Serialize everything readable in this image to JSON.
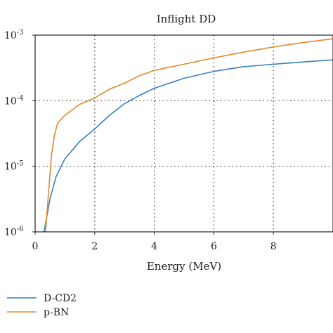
{
  "chart_data": {
    "type": "line",
    "title": "Inflight DD",
    "xlabel": "Energy (MeV)",
    "ylabel": "",
    "xlim": [
      0,
      10
    ],
    "ylim": [
      1e-06,
      0.001
    ],
    "yscale": "log",
    "grid": "dotted",
    "legend_position": "bottom-left",
    "x_ticks": [
      {
        "value": 0,
        "label": "0"
      },
      {
        "value": 2,
        "label": "2"
      },
      {
        "value": 4,
        "label": "4"
      },
      {
        "value": 6,
        "label": "6"
      },
      {
        "value": 8,
        "label": "8"
      }
    ],
    "y_ticks": [
      {
        "value": 1e-06,
        "base": "10",
        "exp": "-6"
      },
      {
        "value": 1e-05,
        "base": "10",
        "exp": "-5"
      },
      {
        "value": 0.0001,
        "base": "10",
        "exp": "-4"
      },
      {
        "value": 0.001,
        "base": "10",
        "exp": "-3"
      }
    ],
    "series": [
      {
        "name": "D-CD2",
        "color": "#3a7fc1",
        "x": [
          0.3,
          0.5,
          0.7,
          1.0,
          1.5,
          2.0,
          2.5,
          3.0,
          3.5,
          4.0,
          5.0,
          6.0,
          7.0,
          8.0,
          9.0,
          10.0
        ],
        "y": [
          1e-06,
          3.2e-06,
          6.9e-06,
          1.3e-05,
          2.4e-05,
          3.7e-05,
          6e-05,
          9e-05,
          0.00012,
          0.000155,
          0.00022,
          0.00028,
          0.00033,
          0.00036,
          0.00039,
          0.00042
        ]
      },
      {
        "name": "p-BN",
        "color": "#e08a2a",
        "x": [
          0.35,
          0.45,
          0.55,
          0.65,
          0.75,
          1.0,
          1.5,
          2.0,
          2.2,
          2.5,
          3.0,
          3.5,
          4.0,
          5.0,
          6.0,
          7.0,
          8.0,
          9.0,
          10.0
        ],
        "y": [
          1e-06,
          4e-06,
          1.5e-05,
          3e-05,
          4.5e-05,
          6e-05,
          8.8e-05,
          0.00011,
          0.000125,
          0.00015,
          0.000185,
          0.00024,
          0.00029,
          0.00036,
          0.00045,
          0.00055,
          0.00066,
          0.00077,
          0.00088
        ]
      }
    ]
  }
}
